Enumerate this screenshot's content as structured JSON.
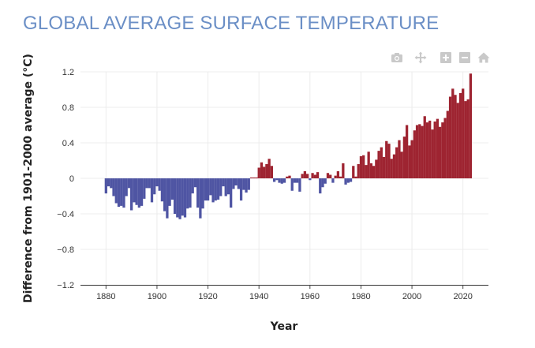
{
  "title": "GLOBAL AVERAGE SURFACE TEMPERATURE",
  "modebar": [
    {
      "name": "camera-icon",
      "label": "Download plot as a png"
    },
    {
      "name": "pan-icon",
      "label": "Pan"
    },
    {
      "name": "zoom-in-icon",
      "label": "Zoom in"
    },
    {
      "name": "zoom-out-icon",
      "label": "Zoom out"
    },
    {
      "name": "home-icon",
      "label": "Reset axes"
    }
  ],
  "colors": {
    "positive": "#9e2431",
    "negative": "#4f55a3",
    "grid": "#ececec",
    "axis": "#444444"
  },
  "chart_data": {
    "type": "bar",
    "title": "GLOBAL AVERAGE SURFACE TEMPERATURE",
    "xlabel": "Year",
    "ylabel": "Difference from 1901-2000 average (°C)",
    "xlim": [
      1870,
      2030
    ],
    "ylim": [
      -1.2,
      1.2
    ],
    "xticks": [
      1880,
      1900,
      1920,
      1940,
      1960,
      1980,
      2000,
      2020
    ],
    "yticks": [
      1.2,
      0.8,
      0.4,
      0,
      -0.4,
      -0.8,
      -1.2
    ],
    "ytick_labels": [
      "1.2",
      "0.8",
      "0.4",
      "0",
      "−0.4",
      "−0.8",
      "−1.2"
    ],
    "grid": true,
    "x_start": 1880,
    "values": [
      -0.17,
      -0.09,
      -0.11,
      -0.2,
      -0.28,
      -0.32,
      -0.31,
      -0.33,
      -0.2,
      -0.11,
      -0.36,
      -0.27,
      -0.3,
      -0.33,
      -0.31,
      -0.23,
      -0.11,
      -0.11,
      -0.27,
      -0.18,
      -0.09,
      -0.14,
      -0.26,
      -0.37,
      -0.45,
      -0.31,
      -0.24,
      -0.4,
      -0.44,
      -0.46,
      -0.42,
      -0.44,
      -0.34,
      -0.33,
      -0.17,
      -0.1,
      -0.33,
      -0.45,
      -0.34,
      -0.25,
      -0.25,
      -0.19,
      -0.27,
      -0.25,
      -0.24,
      -0.2,
      -0.09,
      -0.2,
      -0.18,
      -0.33,
      -0.12,
      -0.08,
      -0.12,
      -0.25,
      -0.13,
      -0.16,
      -0.13,
      0.01,
      0.01,
      0.01,
      0.12,
      0.18,
      0.13,
      0.16,
      0.22,
      0.14,
      -0.04,
      -0.02,
      -0.05,
      -0.06,
      -0.05,
      0.02,
      0.03,
      -0.14,
      -0.05,
      -0.05,
      -0.15,
      0.05,
      0.08,
      0.05,
      -0.02,
      0.06,
      0.04,
      0.07,
      -0.17,
      -0.1,
      -0.06,
      0.06,
      0.04,
      -0.05,
      0.03,
      0.08,
      0.02,
      0.17,
      -0.07,
      -0.05,
      -0.04,
      0.14,
      0.02,
      0.16,
      0.25,
      0.26,
      0.15,
      0.3,
      0.17,
      0.14,
      0.21,
      0.31,
      0.35,
      0.24,
      0.42,
      0.39,
      0.22,
      0.27,
      0.35,
      0.43,
      0.3,
      0.47,
      0.6,
      0.37,
      0.43,
      0.54,
      0.6,
      0.61,
      0.59,
      0.7,
      0.63,
      0.65,
      0.55,
      0.64,
      0.67,
      0.58,
      0.63,
      0.68,
      0.76,
      0.92,
      1.01,
      0.94,
      0.85,
      0.96,
      1.01,
      0.87,
      0.89,
      1.18
    ],
    "tick_label_years": [
      "1880",
      "1900",
      "1920",
      "1940",
      "1960",
      "1980",
      "2000",
      "2020"
    ]
  }
}
